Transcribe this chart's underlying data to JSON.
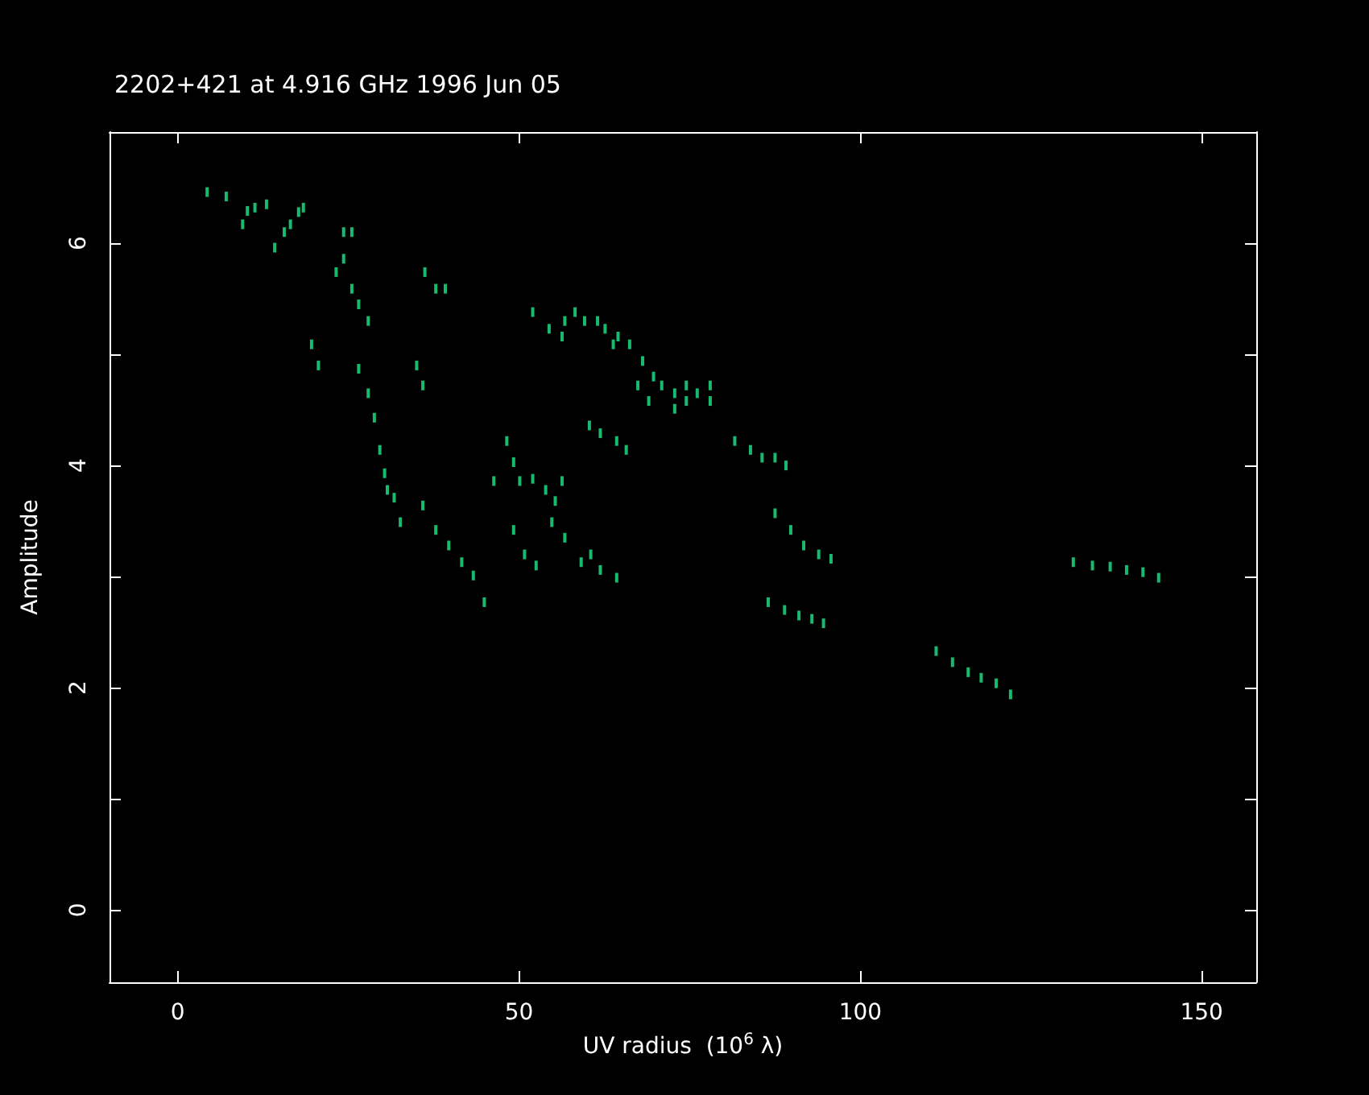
{
  "chart_data": {
    "type": "scatter",
    "title": "2202+421 at 4.916 GHz 1996 Jun 05",
    "xlabel": "UV radius  (10$^{6}$ λ)",
    "ylabel": "Amplitude",
    "xlim": [
      -10,
      158
    ],
    "xticks": [
      0,
      50,
      100,
      150
    ],
    "ylim": [
      -0.65,
      7.0
    ],
    "yticks": [
      0,
      {
        "value": 1,
        "label": null
      },
      2,
      {
        "value": 3,
        "label": null
      },
      4,
      {
        "value": 5,
        "label": null
      },
      6
    ],
    "marker": "square",
    "series": [
      {
        "color": "#1ee88c",
        "x": [
          4.3,
          7.1,
          9.5,
          10.2,
          11.3,
          13.0,
          14.2,
          15.6,
          16.5,
          17.7,
          18.4,
          24.3,
          25.5,
          23.2,
          24.3,
          25.5,
          26.5,
          27.9,
          19.6,
          20.6,
          26.5,
          27.9,
          28.8,
          29.6,
          30.3,
          30.7,
          31.7,
          32.6,
          35.0,
          35.9,
          36.2,
          37.8,
          39.2,
          35.9,
          37.8,
          39.7,
          41.6,
          43.3,
          44.9,
          46.3,
          48.2,
          49.2,
          50.1,
          52.0,
          53.9,
          55.3,
          56.3,
          49.2,
          50.8,
          52.5,
          54.8,
          56.7,
          59.1,
          60.5,
          61.9,
          64.3,
          52.0,
          54.4,
          56.3,
          56.7,
          58.2,
          59.6,
          61.5,
          62.6,
          64.5,
          66.2,
          68.1,
          69.7,
          70.9,
          72.8,
          74.5,
          76.1,
          78.0,
          63.8,
          67.4,
          69.0,
          72.8,
          74.5,
          78.0,
          60.3,
          61.9,
          64.3,
          65.7,
          81.6,
          83.9,
          85.6,
          87.5,
          89.1,
          87.5,
          89.8,
          91.7,
          93.9,
          95.7,
          86.5,
          88.9,
          91.0,
          92.9,
          94.6,
          111.1,
          113.5,
          115.8,
          117.7,
          119.9,
          122.0,
          131.2,
          134.0,
          136.6,
          139.0,
          141.4,
          143.7
        ],
        "values": [
          6.46,
          6.42,
          6.17,
          6.29,
          6.32,
          6.35,
          5.96,
          6.1,
          6.17,
          6.28,
          6.32,
          6.1,
          6.1,
          5.74,
          5.86,
          5.59,
          5.45,
          5.3,
          5.09,
          4.9,
          4.87,
          4.65,
          4.43,
          4.14,
          3.93,
          3.78,
          3.71,
          3.49,
          4.9,
          4.72,
          5.74,
          5.59,
          5.59,
          3.64,
          3.42,
          3.28,
          3.13,
          3.01,
          2.77,
          3.86,
          4.22,
          4.03,
          3.86,
          3.88,
          3.78,
          3.68,
          3.86,
          3.42,
          3.2,
          3.1,
          3.49,
          3.35,
          3.13,
          3.2,
          3.06,
          2.99,
          5.38,
          5.23,
          5.16,
          5.3,
          5.38,
          5.3,
          5.3,
          5.23,
          5.16,
          5.09,
          4.94,
          4.8,
          4.72,
          4.65,
          4.72,
          4.65,
          4.72,
          5.09,
          4.72,
          4.58,
          4.51,
          4.58,
          4.58,
          4.36,
          4.29,
          4.22,
          4.14,
          4.22,
          4.14,
          4.07,
          4.07,
          4.0,
          3.57,
          3.42,
          3.28,
          3.2,
          3.16,
          2.77,
          2.7,
          2.65,
          2.62,
          2.58,
          2.33,
          2.23,
          2.14,
          2.09,
          2.04,
          1.94,
          3.13,
          3.1,
          3.09,
          3.06,
          3.04,
          2.99
        ]
      }
    ]
  }
}
